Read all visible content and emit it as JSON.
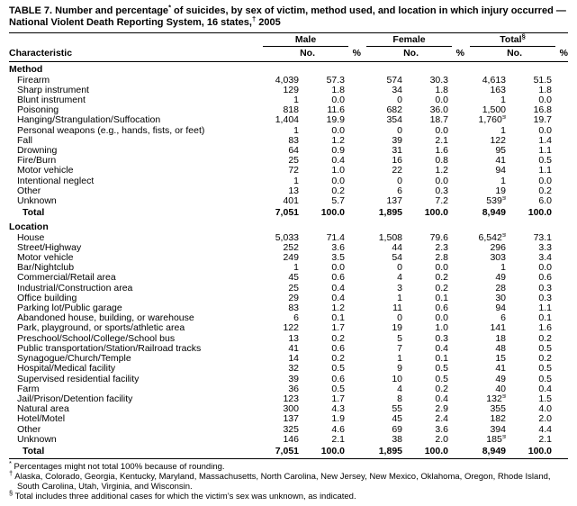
{
  "title": "TABLE 7. Number and percentage* of suicides, by sex of victim, method used, and location in which injury occurred — National Violent Death Reporting System, 16 states,† 2005",
  "table": {
    "characteristic_header": "Characteristic",
    "group_headers": [
      "Male",
      "Female",
      "Total§"
    ],
    "sub_headers": [
      "No.",
      "%"
    ],
    "sections": [
      {
        "name": "Method",
        "rows": [
          {
            "label": "Firearm",
            "values": [
              "4,039",
              "57.3",
              "574",
              "30.3",
              "4,613",
              "51.5"
            ]
          },
          {
            "label": "Sharp instrument",
            "values": [
              "129",
              "1.8",
              "34",
              "1.8",
              "163",
              "1.8"
            ]
          },
          {
            "label": "Blunt instrument",
            "values": [
              "1",
              "0.0",
              "0",
              "0.0",
              "1",
              "0.0"
            ]
          },
          {
            "label": "Poisoning",
            "values": [
              "818",
              "11.6",
              "682",
              "36.0",
              "1,500",
              "16.8"
            ]
          },
          {
            "label": "Hanging/Strangulation/Suffocation",
            "values": [
              "1,404",
              "19.9",
              "354",
              "18.7",
              "1,760§",
              "19.7"
            ]
          },
          {
            "label": "Personal weapons (e.g., hands, fists, or feet)",
            "values": [
              "1",
              "0.0",
              "0",
              "0.0",
              "1",
              "0.0"
            ]
          },
          {
            "label": "Fall",
            "values": [
              "83",
              "1.2",
              "39",
              "2.1",
              "122",
              "1.4"
            ]
          },
          {
            "label": "Drowning",
            "values": [
              "64",
              "0.9",
              "31",
              "1.6",
              "95",
              "1.1"
            ]
          },
          {
            "label": "Fire/Burn",
            "values": [
              "25",
              "0.4",
              "16",
              "0.8",
              "41",
              "0.5"
            ]
          },
          {
            "label": "Motor vehicle",
            "values": [
              "72",
              "1.0",
              "22",
              "1.2",
              "94",
              "1.1"
            ]
          },
          {
            "label": "Intentional neglect",
            "values": [
              "1",
              "0.0",
              "0",
              "0.0",
              "1",
              "0.0"
            ]
          },
          {
            "label": "Other",
            "values": [
              "13",
              "0.2",
              "6",
              "0.3",
              "19",
              "0.2"
            ]
          },
          {
            "label": "Unknown",
            "values": [
              "401",
              "5.7",
              "137",
              "7.2",
              "539§",
              "6.0"
            ]
          }
        ],
        "total": {
          "label": "Total",
          "values": [
            "7,051",
            "100.0",
            "1,895",
            "100.0",
            "8,949",
            "100.0"
          ]
        }
      },
      {
        "name": "Location",
        "rows": [
          {
            "label": "House",
            "values": [
              "5,033",
              "71.4",
              "1,508",
              "79.6",
              "6,542§",
              "73.1"
            ]
          },
          {
            "label": "Street/Highway",
            "values": [
              "252",
              "3.6",
              "44",
              "2.3",
              "296",
              "3.3"
            ]
          },
          {
            "label": "Motor vehicle",
            "values": [
              "249",
              "3.5",
              "54",
              "2.8",
              "303",
              "3.4"
            ]
          },
          {
            "label": "Bar/Nightclub",
            "values": [
              "1",
              "0.0",
              "0",
              "0.0",
              "1",
              "0.0"
            ]
          },
          {
            "label": "Commercial/Retail area",
            "values": [
              "45",
              "0.6",
              "4",
              "0.2",
              "49",
              "0.6"
            ]
          },
          {
            "label": "Industrial/Construction area",
            "values": [
              "25",
              "0.4",
              "3",
              "0.2",
              "28",
              "0.3"
            ]
          },
          {
            "label": "Office building",
            "values": [
              "29",
              "0.4",
              "1",
              "0.1",
              "30",
              "0.3"
            ]
          },
          {
            "label": "Parking lot/Public garage",
            "values": [
              "83",
              "1.2",
              "11",
              "0.6",
              "94",
              "1.1"
            ]
          },
          {
            "label": "Abandoned house, building, or warehouse",
            "values": [
              "6",
              "0.1",
              "0",
              "0.0",
              "6",
              "0.1"
            ]
          },
          {
            "label": "Park, playground, or sports/athletic area",
            "values": [
              "122",
              "1.7",
              "19",
              "1.0",
              "141",
              "1.6"
            ]
          },
          {
            "label": "Preschool/School/College/School bus",
            "values": [
              "13",
              "0.2",
              "5",
              "0.3",
              "18",
              "0.2"
            ]
          },
          {
            "label": "Public transportation/Station/Railroad tracks",
            "values": [
              "41",
              "0.6",
              "7",
              "0.4",
              "48",
              "0.5"
            ]
          },
          {
            "label": "Synagogue/Church/Temple",
            "values": [
              "14",
              "0.2",
              "1",
              "0.1",
              "15",
              "0.2"
            ]
          },
          {
            "label": "Hospital/Medical facility",
            "values": [
              "32",
              "0.5",
              "9",
              "0.5",
              "41",
              "0.5"
            ]
          },
          {
            "label": "Supervised residential facility",
            "values": [
              "39",
              "0.6",
              "10",
              "0.5",
              "49",
              "0.5"
            ]
          },
          {
            "label": "Farm",
            "values": [
              "36",
              "0.5",
              "4",
              "0.2",
              "40",
              "0.4"
            ]
          },
          {
            "label": "Jail/Prison/Detention facility",
            "values": [
              "123",
              "1.7",
              "8",
              "0.4",
              "132§",
              "1.5"
            ]
          },
          {
            "label": "Natural area",
            "values": [
              "300",
              "4.3",
              "55",
              "2.9",
              "355",
              "4.0"
            ]
          },
          {
            "label": "Hotel/Motel",
            "values": [
              "137",
              "1.9",
              "45",
              "2.4",
              "182",
              "2.0"
            ]
          },
          {
            "label": "Other",
            "values": [
              "325",
              "4.6",
              "69",
              "3.6",
              "394",
              "4.4"
            ]
          },
          {
            "label": "Unknown",
            "values": [
              "146",
              "2.1",
              "38",
              "2.0",
              "185§",
              "2.1"
            ]
          }
        ],
        "total": {
          "label": "Total",
          "values": [
            "7,051",
            "100.0",
            "1,895",
            "100.0",
            "8,949",
            "100.0"
          ]
        }
      }
    ]
  },
  "footnotes": [
    {
      "marker": "*",
      "text": "Percentages might not total 100% because of rounding."
    },
    {
      "marker": "†",
      "text": "Alaska, Colorado, Georgia, Kentucky, Maryland, Massachusetts, North Carolina, New Jersey, New Mexico, Oklahoma, Oregon, Rhode Island, South Carolina, Utah, Virginia, and Wisconsin."
    },
    {
      "marker": "§",
      "text": "Total includes three additional cases for which the victim’s sex was unknown, as indicated."
    }
  ]
}
